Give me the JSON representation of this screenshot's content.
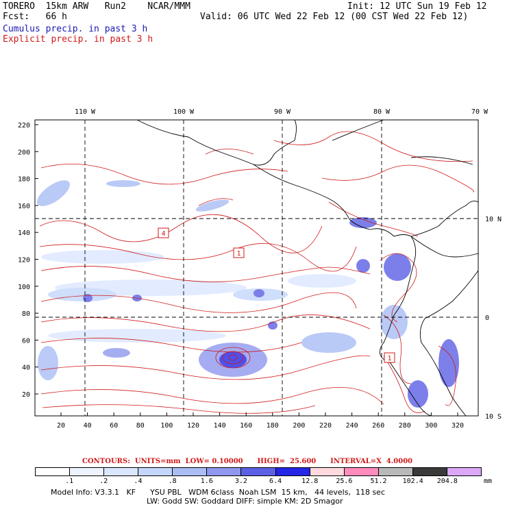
{
  "header": {
    "line1_left": "TORERO  15km ARW   Run2    NCAR/MMM",
    "line1_right": "Init: 12 UTC Sun 19 Feb 12",
    "line2_left": "Fcst:   66 h",
    "line2_right": "Valid: 06 UTC Wed 22 Feb 12 (00 CST Wed 22 Feb 12)",
    "cumulus": "Cumulus precip. in past 3 h",
    "explicit": "Explicit precip. in past 3 h"
  },
  "map": {
    "top_lon_labels": [
      "110 W",
      "100 W",
      "90 W",
      "80 W",
      "70 W"
    ],
    "right_lat_labels": [
      "10 N",
      "0",
      "10 S"
    ],
    "left_ticks": [
      "220",
      "200",
      "180",
      "160",
      "140",
      "120",
      "100",
      "80",
      "60",
      "40",
      "20"
    ],
    "bottom_ticks": [
      "20",
      "40",
      "60",
      "80",
      "100",
      "120",
      "140",
      "160",
      "180",
      "200",
      "220",
      "240",
      "260",
      "280",
      "300",
      "320"
    ],
    "contour_labels": [
      "4",
      "1",
      "1"
    ]
  },
  "contours_info": "CONTOURS:  UNITS=mm  LOW= 0.10000      HIGH=  25.600      INTERVAL=X  4.0000",
  "colorbar": {
    "labels": [
      ".1",
      ".2",
      ".4",
      ".8",
      "1.6",
      "3.2",
      "6.4",
      "12.8",
      "25.6",
      "51.2",
      "102.4",
      "204.8"
    ],
    "unit": "mm",
    "colors": [
      "#ffffff",
      "#eef4ff",
      "#dbe7ff",
      "#c4d6fb",
      "#aabdf5",
      "#8f98ee",
      "#5c60e4",
      "#2525e6",
      "#ffd9dd",
      "#ff8cbd",
      "#b9b9b9",
      "#3a3a3a",
      "#dba8f7"
    ]
  },
  "footer": {
    "line1": "Model Info: V3.3.1   KF      YSU PBL   WDM 6class  Noah LSM  15 km,   44 levels,  118 sec",
    "line2": "LW: Godd SW: Goddard DIFF: simple KM: 2D Smagor"
  }
}
